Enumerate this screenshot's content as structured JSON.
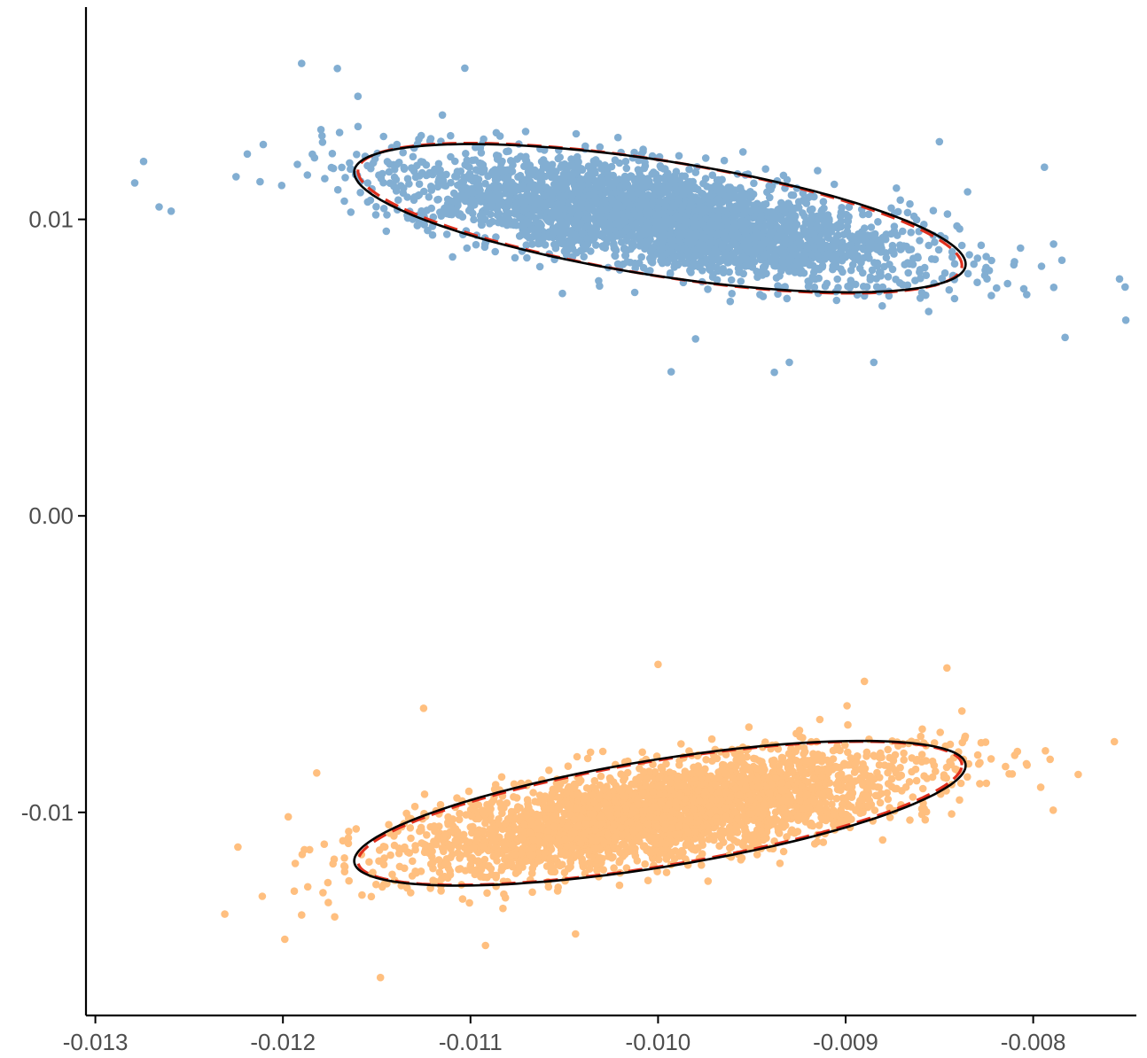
{
  "chart_data": {
    "type": "scatter",
    "title": "",
    "xlabel": "",
    "ylabel": "",
    "xlim": [
      -0.01305,
      -0.00745
    ],
    "ylim": [
      -0.01685,
      0.01716
    ],
    "grid": false,
    "legend": "none",
    "x_ticks": [
      {
        "value": -0.013,
        "label": "-0.013"
      },
      {
        "value": -0.012,
        "label": "-0.012"
      },
      {
        "value": -0.011,
        "label": "-0.011"
      },
      {
        "value": -0.01,
        "label": "-0.010"
      },
      {
        "value": -0.009,
        "label": "-0.009"
      },
      {
        "value": -0.008,
        "label": "-0.008"
      }
    ],
    "y_ticks": [
      {
        "value": 0.01,
        "label": "0.01"
      },
      {
        "value": 0.0,
        "label": "0.00"
      },
      {
        "value": -0.01,
        "label": "-0.01"
      }
    ],
    "series": [
      {
        "color": "#82AED2",
        "center": [
          -0.00999,
          0.01004
        ],
        "ellipse_solid": {
          "rx": 0.00163,
          "ry": 0.0025,
          "corr": -0.62,
          "color": "#000000"
        },
        "ellipse_dashed": {
          "rx": 0.00161,
          "ry": 0.00253,
          "corr": -0.63,
          "color": "#E0301E"
        },
        "sample_points": [
          [
            -0.01279,
            0.01123
          ],
          [
            -0.01266,
            0.01042
          ],
          [
            -0.01225,
            0.01144
          ],
          [
            -0.0119,
            0.01526
          ],
          [
            -0.01171,
            0.01509
          ],
          [
            -0.01103,
            0.0151
          ],
          [
            -0.00938,
            0.00484
          ],
          [
            -0.00885,
            0.00518
          ],
          [
            -0.00794,
            0.01176
          ],
          [
            -0.00783,
            0.00602
          ],
          [
            -0.00754,
            0.00799
          ],
          [
            -0.00751,
            0.00772
          ],
          [
            -0.0098,
            0.00597
          ],
          [
            -0.01051,
            0.0075
          ],
          [
            -0.0093,
            0.00518
          ],
          [
            -0.01115,
            0.01352
          ],
          [
            -0.0089,
            0.00742
          ],
          [
            -0.00993,
            0.00486
          ],
          [
            -0.00835,
            0.01093
          ],
          [
            -0.0081,
            0.00857
          ],
          [
            -0.0116,
            0.01415
          ],
          [
            -0.0085,
            0.01262
          ]
        ]
      },
      {
        "color": "#FFBF7F",
        "center": [
          -0.00999,
          -0.01003
        ],
        "ellipse_solid": {
          "rx": 0.00163,
          "ry": 0.00244,
          "corr": 0.66,
          "color": "#000000"
        },
        "ellipse_dashed": {
          "rx": 0.00161,
          "ry": 0.00242,
          "corr": 0.67,
          "color": "#E0301E"
        },
        "sample_points": [
          [
            -0.01231,
            -0.01343
          ],
          [
            -0.01224,
            -0.01117
          ],
          [
            -0.01211,
            -0.01283
          ],
          [
            -0.01199,
            -0.01428
          ],
          [
            -0.0119,
            -0.01346
          ],
          [
            -0.01148,
            -0.01557
          ],
          [
            -0.01092,
            -0.01449
          ],
          [
            -0.01044,
            -0.0141
          ],
          [
            -0.01,
            -0.00501
          ],
          [
            -0.0089,
            -0.00558
          ],
          [
            -0.00846,
            -0.00513
          ],
          [
            -0.00838,
            -0.00658
          ],
          [
            -0.00776,
            -0.00872
          ],
          [
            -0.00791,
            -0.00821
          ],
          [
            -0.00796,
            -0.00915
          ],
          [
            -0.01182,
            -0.00867
          ],
          [
            -0.01125,
            -0.00649
          ],
          [
            -0.01036,
            -0.00797
          ],
          [
            -0.00952,
            -0.00786
          ],
          [
            -0.0086,
            -0.00744
          ],
          [
            -0.00935,
            -0.01172
          ],
          [
            -0.01067,
            -0.01269
          ]
        ]
      }
    ]
  }
}
